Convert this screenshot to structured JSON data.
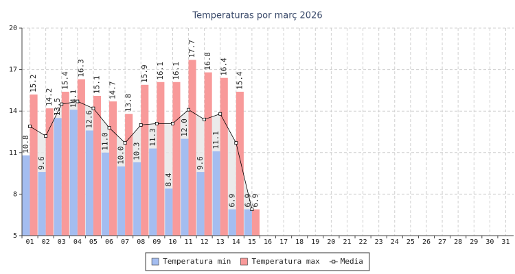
{
  "chart_data": {
    "type": "bar",
    "title": "Temperaturas por març 2026",
    "categories": [
      "01",
      "02",
      "03",
      "04",
      "05",
      "06",
      "07",
      "08",
      "09",
      "10",
      "11",
      "12",
      "13",
      "14",
      "15",
      "16",
      "17",
      "18",
      "19",
      "20",
      "21",
      "22",
      "23",
      "24",
      "25",
      "26",
      "27",
      "28",
      "29",
      "30",
      "31"
    ],
    "series": [
      {
        "name": "Temperatura min",
        "type": "bar",
        "color": "#a4bdf0",
        "values": [
          10.8,
          9.6,
          13.5,
          14.1,
          12.6,
          11.0,
          10.0,
          10.3,
          11.3,
          8.4,
          12.0,
          9.6,
          11.1,
          6.9,
          6.9,
          null,
          null,
          null,
          null,
          null,
          null,
          null,
          null,
          null,
          null,
          null,
          null,
          null,
          null,
          null,
          null
        ],
        "value_labels": [
          "10.8",
          "9.6",
          "13.5",
          "14.1",
          "12.6",
          "11.0",
          "10.0",
          "10.3",
          "11.3",
          "8.4",
          "12.0",
          "9.6",
          "11.1",
          "6.9",
          "6.9",
          null,
          null,
          null,
          null,
          null,
          null,
          null,
          null,
          null,
          null,
          null,
          null,
          null,
          null,
          null,
          null
        ]
      },
      {
        "name": "Temperatura max",
        "type": "bar",
        "color": "#f89a9a",
        "values": [
          15.2,
          14.2,
          15.4,
          16.3,
          15.1,
          14.7,
          13.8,
          15.9,
          16.1,
          16.1,
          17.7,
          16.8,
          16.4,
          15.4,
          6.9,
          null,
          null,
          null,
          null,
          null,
          null,
          null,
          null,
          null,
          null,
          null,
          null,
          null,
          null,
          null,
          null
        ],
        "value_labels": [
          "15.2",
          "14.2",
          "15.4",
          "16.3",
          "15.1",
          "14.7",
          "13.8",
          "15.9",
          "16.1",
          "16.1",
          "17.7",
          "16.8",
          "16.4",
          "15.4",
          "6.9",
          null,
          null,
          null,
          null,
          null,
          null,
          null,
          null,
          null,
          null,
          null,
          null,
          null,
          null,
          null,
          null
        ]
      },
      {
        "name": "Media",
        "type": "line",
        "color": "#000000",
        "values": [
          12.9,
          12.2,
          14.5,
          14.7,
          14.2,
          12.8,
          11.7,
          13.0,
          13.1,
          13.1,
          14.1,
          13.4,
          13.8,
          11.7,
          6.9,
          null,
          null,
          null,
          null,
          null,
          null,
          null,
          null,
          null,
          null,
          null,
          null,
          null,
          null,
          null,
          null
        ]
      }
    ],
    "ylim": [
      5,
      20
    ],
    "yticks": [
      5,
      8,
      11,
      14,
      17,
      20
    ],
    "grid": true,
    "legend": "bottom"
  }
}
